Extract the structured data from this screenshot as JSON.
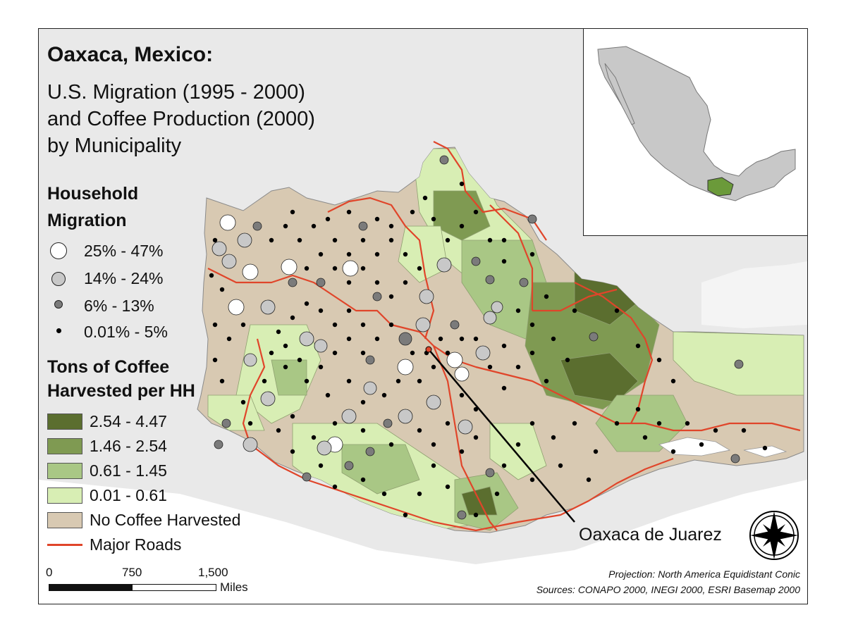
{
  "title": "Oaxaca, Mexico:",
  "subtitle_lines": [
    "U.S. Migration (1995 - 2000)",
    "and Coffee Production (2000)",
    "by Municipality"
  ],
  "migration_legend": {
    "heading_lines": [
      "Household",
      "Migration"
    ],
    "classes": [
      {
        "label": "25% - 47%",
        "color": "#ffffff"
      },
      {
        "label": "14% - 24%",
        "color": "#c8c8c8"
      },
      {
        "label": "6% - 13%",
        "color": "#7b7b7b"
      },
      {
        "label": "0.01% - 5%",
        "color": "#000000"
      }
    ]
  },
  "coffee_legend": {
    "heading_lines": [
      "Tons of Coffee",
      "Harvested per HH"
    ],
    "classes": [
      {
        "label": "2.54 - 4.47",
        "color": "#5b6e2f"
      },
      {
        "label": "1.46 - 2.54",
        "color": "#7f9a52"
      },
      {
        "label": "0.61 - 1.45",
        "color": "#a9c785"
      },
      {
        "label": "0.01 - 0.61",
        "color": "#d8eeb4"
      },
      {
        "label": "No Coffee Harvested",
        "color": "#d8c9b2"
      }
    ],
    "roads_label": "Major Roads",
    "roads_color": "#e0452a"
  },
  "callout_label": "Oaxaca de Juarez",
  "scale": {
    "ticks": [
      "0",
      "750",
      "1,500"
    ],
    "unit": "Miles"
  },
  "credits": {
    "projection": "Projection: North America Equidistant Conic",
    "sources": "Sources: CONAPO 2000, INEGI 2000, ESRI Basemap 2000"
  },
  "icons": {
    "north_arrow": "compass-rose-icon"
  }
}
